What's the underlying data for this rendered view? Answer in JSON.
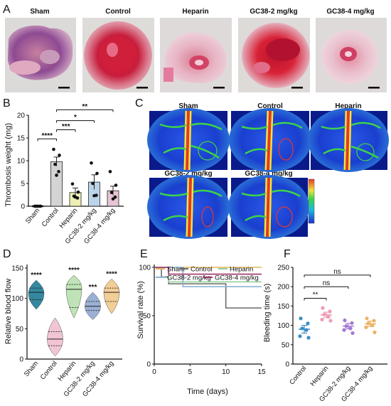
{
  "figure": {
    "panels": {
      "A": "A",
      "B": "B",
      "C": "C",
      "D": "D",
      "E": "E",
      "F": "F"
    }
  },
  "histology": {
    "labels": [
      "Sham",
      "Control",
      "Heparin",
      "GC38-2 mg/kg",
      "GC38-4 mg/kg"
    ]
  },
  "perfusion": {
    "labels": [
      "Sham",
      "Control",
      "Heparin",
      "GC38-2 mg/kg",
      "GC38-4 mg/kg"
    ]
  },
  "chart_data": [
    {
      "panel": "B",
      "type": "bar",
      "ylabel": "Thrombosis weight (mg)",
      "ylim": [
        0,
        20
      ],
      "yticks": [
        "0",
        "5",
        "10",
        "15",
        "20"
      ],
      "categories": [
        "Sham",
        "Control",
        "Heparin",
        "GC38-2 mg/kg",
        "GC38-4 mg/kg"
      ],
      "values": [
        0,
        9.8,
        3.0,
        5.3,
        3.4
      ],
      "errors": [
        0.1,
        1.0,
        1.0,
        1.6,
        1.0
      ],
      "points": [
        [
          0,
          0,
          0,
          0,
          0
        ],
        [
          12.5,
          11.2,
          9.2,
          7.6,
          6.8
        ],
        [
          4.9,
          3.1,
          2.2,
          1.8,
          2.0
        ],
        [
          9.5,
          7.2,
          5.0,
          2.4,
          2.3
        ],
        [
          7.6,
          4.6,
          3.0,
          2.0,
          1.6
        ]
      ],
      "colors": [
        "#1a1a1a",
        "#d4d4d4",
        "#eef0b4",
        "#bcd4ea",
        "#e7c5d4"
      ],
      "significance": [
        {
          "from": 0,
          "to": 1,
          "label": "****"
        },
        {
          "from": 1,
          "to": 2,
          "label": "***"
        },
        {
          "from": 1,
          "to": 3,
          "label": "*"
        },
        {
          "from": 1,
          "to": 4,
          "label": "**"
        }
      ]
    },
    {
      "panel": "D",
      "type": "violin",
      "ylabel": "Relative blood flow",
      "ylim": [
        0,
        150
      ],
      "yticks": [
        "0",
        "50",
        "100",
        "150"
      ],
      "categories": [
        "Sham",
        "Control",
        "Heparin",
        "GC38-2 mg/kg",
        "GC38-4 mg/kg"
      ],
      "ranges": [
        [
          82,
          130
        ],
        [
          5,
          68
        ],
        [
          68,
          138
        ],
        [
          65,
          110
        ],
        [
          75,
          132
        ]
      ],
      "median": [
        110,
        33,
        115,
        87,
        110
      ],
      "quartiles": [
        [
          98,
          117
        ],
        [
          22,
          45
        ],
        [
          85,
          123
        ],
        [
          80,
          95
        ],
        [
          95,
          117
        ]
      ],
      "modes": [
        108,
        32,
        118,
        87,
        110
      ],
      "colors": [
        "#1e7b95",
        "#f0bfcf",
        "#b8e0ae",
        "#8fa9d0",
        "#efc98a"
      ],
      "significance": [
        "****",
        "",
        "****",
        "***",
        "****"
      ]
    },
    {
      "panel": "E",
      "type": "line",
      "step": true,
      "xlabel": "Time (days)",
      "ylabel": "Survival rate (%)",
      "xlim": [
        0,
        15
      ],
      "ylim": [
        0,
        100
      ],
      "xticks": [
        "0",
        "5",
        "10",
        "15"
      ],
      "yticks": [
        "0",
        "50",
        "100"
      ],
      "series": [
        {
          "name": "Sham",
          "color": "#e3b65e",
          "x": [
            0,
            15
          ],
          "y": [
            100,
            100
          ]
        },
        {
          "name": "Control",
          "color": "#6b6b6b",
          "x": [
            0,
            1,
            2,
            9,
            10,
            15
          ],
          "y": [
            100,
            90,
            83,
            83,
            58,
            58
          ]
        },
        {
          "name": "Heparin",
          "color": "#93d19c",
          "x": [
            0,
            2,
            15
          ],
          "y": [
            100,
            85,
            85
          ]
        },
        {
          "name": "GC38-2 mg/kg",
          "color": "#8cb2d6",
          "x": [
            0,
            4,
            15
          ],
          "y": [
            100,
            80,
            80
          ]
        },
        {
          "name": "GC38-4 mg/kg",
          "color": "#a2336f",
          "x": [
            0,
            2,
            15
          ],
          "y": [
            100,
            93,
            93
          ]
        }
      ]
    },
    {
      "panel": "F",
      "type": "scatter",
      "ylabel": "Bleeding time (s)",
      "ylim": [
        0,
        250
      ],
      "yticks": [
        "0",
        "50",
        "100",
        "150",
        "200",
        "250"
      ],
      "categories": [
        "Control",
        "Heparin",
        "GC38-2 mg/kg",
        "GC38-4 mg/kg"
      ],
      "mean": [
        90,
        127,
        98,
        104
      ],
      "sem": [
        10,
        7,
        7,
        7
      ],
      "points": [
        [
          118,
          105,
          92,
          88,
          72,
          68
        ],
        [
          145,
          136,
          128,
          122,
          115,
          112
        ],
        [
          113,
          106,
          98,
          92,
          88,
          80
        ],
        [
          118,
          112,
          105,
          100,
          95,
          82
        ]
      ],
      "colors": [
        "#3a8ec8",
        "#ee9cb2",
        "#a57ad2",
        "#ebb365"
      ],
      "significance": [
        {
          "from": 0,
          "to": 1,
          "label": "**"
        },
        {
          "from": 0,
          "to": 2,
          "label": "ns"
        },
        {
          "from": 0,
          "to": 3,
          "label": "ns"
        }
      ]
    }
  ]
}
